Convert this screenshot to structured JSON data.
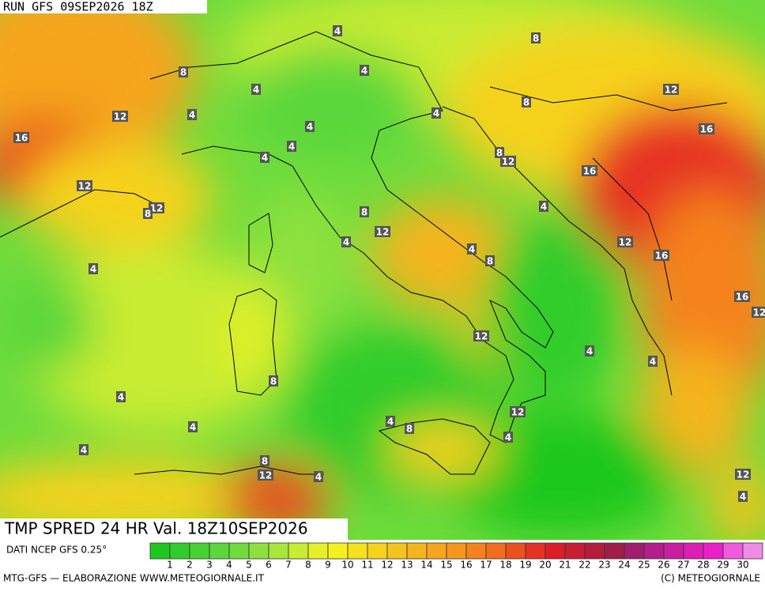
{
  "header": {
    "run": "RUN GFS 09SEP2026 18Z"
  },
  "map": {
    "field_title": "TMP SPRED 24 HR Val. 18Z10SEP2026",
    "source": "DATI NCEP GFS 0.25°",
    "contour_labels": [
      4,
      8,
      8,
      4,
      4,
      12,
      8,
      4,
      12,
      4,
      4,
      16,
      16,
      4,
      8,
      12,
      4,
      16,
      12,
      12,
      8,
      8,
      4,
      12,
      12,
      4,
      4,
      8,
      16,
      4,
      16,
      12,
      12,
      4,
      4,
      8,
      4,
      12,
      4,
      8,
      4,
      4,
      4,
      8,
      12,
      4,
      12,
      4
    ]
  },
  "legend": {
    "labels": [
      1,
      2,
      3,
      4,
      5,
      6,
      7,
      8,
      9,
      10,
      11,
      12,
      13,
      14,
      15,
      16,
      17,
      18,
      19,
      20,
      21,
      22,
      23,
      24,
      25,
      26,
      27,
      28,
      29,
      30
    ],
    "colors": [
      "#1ec81e",
      "#32cd2a",
      "#46d232",
      "#5ad73a",
      "#6edc3c",
      "#8ce13c",
      "#a8e63c",
      "#c8ec32",
      "#e6f028",
      "#f5f01e",
      "#f5e11e",
      "#f5d21e",
      "#f5c31e",
      "#f5b41e",
      "#f5a51e",
      "#f5961e",
      "#f5821e",
      "#f06e1e",
      "#eb501e",
      "#e63223",
      "#dc1e28",
      "#c81e32",
      "#b41e3c",
      "#a01e46",
      "#a01e6e",
      "#b41e8c",
      "#c81ea0",
      "#dc1eb4",
      "#eb1ec8",
      "#f05adc",
      "#f08ce6"
    ]
  },
  "footer": {
    "left": "MTG-GFS — ELABORAZIONE WWW.METEOGIORNALE.IT",
    "right": "(C) METEOGIORNALE"
  }
}
